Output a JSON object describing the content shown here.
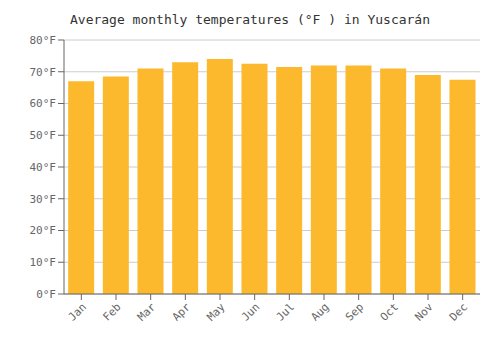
{
  "chart_data": {
    "type": "bar",
    "title": "Average monthly temperatures (°F ) in Yuscarán",
    "categories": [
      "Jan",
      "Feb",
      "Mar",
      "Apr",
      "May",
      "Jun",
      "Jul",
      "Aug",
      "Sep",
      "Oct",
      "Nov",
      "Dec"
    ],
    "values": [
      67,
      68.5,
      71,
      73,
      74,
      72.5,
      71.5,
      72,
      72,
      71,
      69,
      67.5
    ],
    "color": "#FDB92E",
    "ylim": [
      0,
      80
    ],
    "yticks": [
      {
        "value": 0,
        "label": "0°F"
      },
      {
        "value": 10,
        "label": "10°F"
      },
      {
        "value": 20,
        "label": "20°F"
      },
      {
        "value": 30,
        "label": "30°F"
      },
      {
        "value": 40,
        "label": "40°F"
      },
      {
        "value": 50,
        "label": "50°F"
      },
      {
        "value": 60,
        "label": "60°F"
      },
      {
        "value": 70,
        "label": "70°F"
      },
      {
        "value": 80,
        "label": "80°F"
      }
    ],
    "grid": true
  }
}
